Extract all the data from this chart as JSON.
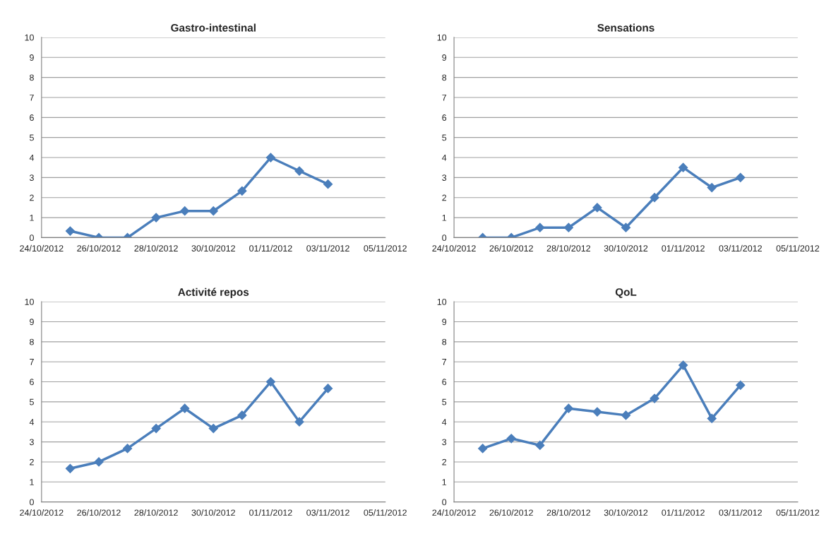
{
  "chart_data": [
    {
      "type": "line",
      "title": "Gastro-intestinal",
      "x": [
        "2012-10-25",
        "2012-10-26",
        "2012-10-27",
        "2012-10-28",
        "2012-10-29",
        "2012-10-30",
        "2012-10-31",
        "2012-11-01",
        "2012-11-02",
        "2012-11-03"
      ],
      "series": [
        {
          "color": "#4a7ebb",
          "values": [
            0.33,
            0,
            0,
            1,
            1.33,
            1.33,
            2.33,
            4,
            3.33,
            2.67
          ]
        }
      ],
      "xlim": [
        "2012-10-24",
        "2012-11-05"
      ],
      "xticks": [
        {
          "value": "2012-10-24",
          "label": "24/10/2012"
        },
        {
          "value": "2012-10-26",
          "label": "26/10/2012"
        },
        {
          "value": "2012-10-28",
          "label": "28/10/2012"
        },
        {
          "value": "2012-10-30",
          "label": "30/10/2012"
        },
        {
          "value": "2012-11-01",
          "label": "01/11/2012"
        },
        {
          "value": "2012-11-03",
          "label": "03/11/2012"
        },
        {
          "value": "2012-11-05",
          "label": "05/11/2012"
        }
      ],
      "ylim": [
        0,
        10
      ],
      "yticks": [
        0,
        1,
        2,
        3,
        4,
        5,
        6,
        7,
        8,
        9,
        10
      ],
      "grid": "y",
      "marker": "diamond",
      "line_style": "solid"
    },
    {
      "type": "line",
      "title": "Sensations",
      "x": [
        "2012-10-25",
        "2012-10-26",
        "2012-10-27",
        "2012-10-28",
        "2012-10-29",
        "2012-10-30",
        "2012-10-31",
        "2012-11-01",
        "2012-11-02",
        "2012-11-03"
      ],
      "series": [
        {
          "color": "#4a7ebb",
          "values": [
            0,
            0,
            0.5,
            0.5,
            1.5,
            0.5,
            2,
            3.5,
            2.5,
            3
          ]
        }
      ],
      "xlim": [
        "2012-10-24",
        "2012-11-05"
      ],
      "xticks": [
        {
          "value": "2012-10-24",
          "label": "24/10/2012"
        },
        {
          "value": "2012-10-26",
          "label": "26/10/2012"
        },
        {
          "value": "2012-10-28",
          "label": "28/10/2012"
        },
        {
          "value": "2012-10-30",
          "label": "30/10/2012"
        },
        {
          "value": "2012-11-01",
          "label": "01/11/2012"
        },
        {
          "value": "2012-11-03",
          "label": "03/11/2012"
        },
        {
          "value": "2012-11-05",
          "label": "05/11/2012"
        }
      ],
      "ylim": [
        0,
        10
      ],
      "yticks": [
        0,
        1,
        2,
        3,
        4,
        5,
        6,
        7,
        8,
        9,
        10
      ],
      "grid": "y",
      "marker": "diamond",
      "line_style": "solid"
    },
    {
      "type": "line",
      "title": "Activité repos",
      "x": [
        "2012-10-25",
        "2012-10-26",
        "2012-10-27",
        "2012-10-28",
        "2012-10-29",
        "2012-10-30",
        "2012-10-31",
        "2012-11-01",
        "2012-11-02",
        "2012-11-03"
      ],
      "series": [
        {
          "color": "#4a7ebb",
          "values": [
            1.67,
            2,
            2.67,
            3.67,
            4.67,
            3.67,
            4.33,
            6,
            4,
            5.67
          ]
        }
      ],
      "xlim": [
        "2012-10-24",
        "2012-11-05"
      ],
      "xticks": [
        {
          "value": "2012-10-24",
          "label": "24/10/2012"
        },
        {
          "value": "2012-10-26",
          "label": "26/10/2012"
        },
        {
          "value": "2012-10-28",
          "label": "28/10/2012"
        },
        {
          "value": "2012-10-30",
          "label": "30/10/2012"
        },
        {
          "value": "2012-11-01",
          "label": "01/11/2012"
        },
        {
          "value": "2012-11-03",
          "label": "03/11/2012"
        },
        {
          "value": "2012-11-05",
          "label": "05/11/2012"
        }
      ],
      "ylim": [
        0,
        10
      ],
      "yticks": [
        0,
        1,
        2,
        3,
        4,
        5,
        6,
        7,
        8,
        9,
        10
      ],
      "grid": "y",
      "marker": "diamond",
      "line_style": "solid"
    },
    {
      "type": "line",
      "title": "QoL",
      "x": [
        "2012-10-25",
        "2012-10-26",
        "2012-10-27",
        "2012-10-28",
        "2012-10-29",
        "2012-10-30",
        "2012-10-31",
        "2012-11-01",
        "2012-11-02",
        "2012-11-03"
      ],
      "series": [
        {
          "color": "#4a7ebb",
          "values": [
            2.67,
            3.17,
            2.83,
            4.67,
            4.5,
            4.33,
            5.17,
            6.83,
            4.17,
            5.83
          ]
        }
      ],
      "xlim": [
        "2012-10-24",
        "2012-11-05"
      ],
      "xticks": [
        {
          "value": "2012-10-24",
          "label": "24/10/2012"
        },
        {
          "value": "2012-10-26",
          "label": "26/10/2012"
        },
        {
          "value": "2012-10-28",
          "label": "28/10/2012"
        },
        {
          "value": "2012-10-30",
          "label": "30/10/2012"
        },
        {
          "value": "2012-11-01",
          "label": "01/11/2012"
        },
        {
          "value": "2012-11-03",
          "label": "03/11/2012"
        },
        {
          "value": "2012-11-05",
          "label": "05/11/2012"
        }
      ],
      "ylim": [
        0,
        10
      ],
      "yticks": [
        0,
        1,
        2,
        3,
        4,
        5,
        6,
        7,
        8,
        9,
        10
      ],
      "grid": "y",
      "marker": "diamond",
      "line_style": "solid"
    }
  ]
}
